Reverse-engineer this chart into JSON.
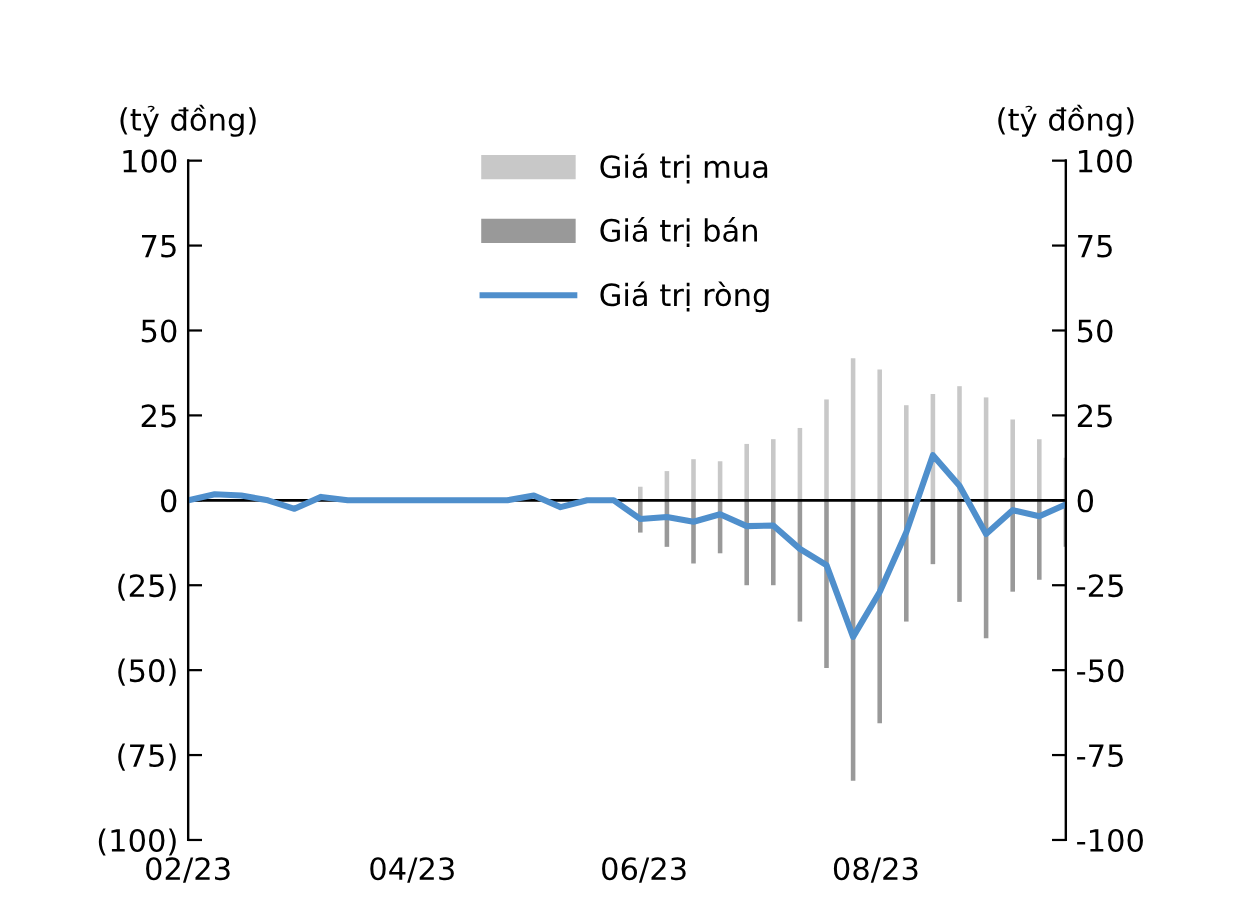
{
  "chart_data": {
    "type": "bar",
    "ylabel": "(tỷ đồng)",
    "y2label": "(tỷ đồng)",
    "x": [
      "2023-02-01",
      "2023-02-08",
      "2023-02-15",
      "2023-02-22",
      "2023-03-01",
      "2023-03-08",
      "2023-03-15",
      "2023-03-22",
      "2023-03-29",
      "2023-04-05",
      "2023-04-12",
      "2023-04-19",
      "2023-04-26",
      "2023-05-03",
      "2023-05-10",
      "2023-05-17",
      "2023-05-24",
      "2023-05-31",
      "2023-06-07",
      "2023-06-14",
      "2023-06-21",
      "2023-06-28",
      "2023-07-05",
      "2023-07-12",
      "2023-07-19",
      "2023-07-26",
      "2023-08-02",
      "2023-08-09",
      "2023-08-16",
      "2023-08-23",
      "2023-08-30",
      "2023-09-06",
      "2023-09-13",
      "2023-09-20"
    ],
    "series": [
      {
        "name": "Giá trị mua",
        "color": "#c8c8c8",
        "values": [
          null,
          null,
          null,
          null,
          null,
          null,
          null,
          null,
          null,
          null,
          null,
          null,
          null,
          null,
          null,
          null,
          null,
          4,
          8.6,
          12.1,
          11.5,
          16.6,
          18,
          21.3,
          29.7,
          41.8,
          38.5,
          28,
          31.3,
          33.6,
          30.3,
          23.8,
          18,
          12.5
        ]
      },
      {
        "name": "Giá trị bán",
        "color": "#999999",
        "values": [
          null,
          null,
          null,
          null,
          null,
          null,
          null,
          null,
          null,
          null,
          null,
          null,
          null,
          null,
          null,
          null,
          null,
          -9.5,
          -13.7,
          -18.6,
          -15.6,
          -25,
          -25,
          -35.7,
          -49.4,
          -82.6,
          -65.6,
          -35.7,
          -18.8,
          -29.9,
          -40.6,
          -26.9,
          -23.4,
          -13.7
        ]
      },
      {
        "name": "Giá trị ròng",
        "type": "line",
        "color": "#4f8fcc",
        "values": [
          0,
          1.8,
          1.4,
          0,
          -2.5,
          1,
          0,
          0,
          0,
          0,
          0,
          0,
          0,
          1.4,
          -2,
          0,
          0,
          -5.5,
          -4.9,
          -6.3,
          -4.1,
          -7.6,
          -7.4,
          -14.3,
          -19.1,
          -40.2,
          -27,
          -9.4,
          13.3,
          4.3,
          -9.9,
          -2.9,
          -4.7,
          -1.2
        ]
      }
    ],
    "xlim": [
      "2023-02-01",
      "2023-09-20"
    ],
    "xticks": [
      {
        "value": "2023-02-01",
        "label": "02/23"
      },
      {
        "value": "2023-04-01",
        "label": "04/23"
      },
      {
        "value": "2023-06-01",
        "label": "06/23"
      },
      {
        "value": "2023-08-01",
        "label": "08/23"
      }
    ],
    "ylim": [
      -100,
      100
    ],
    "yticks": [
      {
        "value": -100,
        "label": "(100)"
      },
      {
        "value": -75,
        "label": "(75)"
      },
      {
        "value": -50,
        "label": "(50)"
      },
      {
        "value": -25,
        "label": "(25)"
      },
      0,
      25,
      50,
      75,
      100
    ],
    "y2lim": [
      -100,
      100
    ],
    "y2ticks": [
      -100,
      -75,
      -50,
      -25,
      0,
      25,
      50,
      75,
      100
    ],
    "ref_lines": [
      {
        "axis": "y",
        "value": 0,
        "color": "#000000"
      }
    ],
    "stacked": true,
    "legend": "top",
    "grid": false
  }
}
